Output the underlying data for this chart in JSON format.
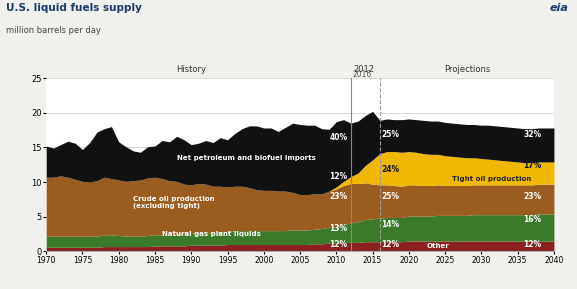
{
  "title": "U.S. liquid fuels supply",
  "subtitle": "million barrels per day",
  "ylim": [
    0,
    25
  ],
  "xlim": [
    1970,
    2040
  ],
  "yticks": [
    0,
    5,
    10,
    15,
    20,
    25
  ],
  "xticks": [
    1970,
    1975,
    1980,
    1985,
    1990,
    1995,
    2000,
    2005,
    2010,
    2015,
    2020,
    2025,
    2030,
    2035,
    2040
  ],
  "history_line_x": 2012,
  "projection_line_x": 2016,
  "colors": {
    "other": "#8B2020",
    "ngpl": "#3a7a28",
    "crude": "#9B5C20",
    "tight": "#F0B800",
    "imports": "#111111"
  },
  "history_years": [
    1970,
    1971,
    1972,
    1973,
    1974,
    1975,
    1976,
    1977,
    1978,
    1979,
    1980,
    1981,
    1982,
    1983,
    1984,
    1985,
    1986,
    1987,
    1988,
    1989,
    1990,
    1991,
    1992,
    1993,
    1994,
    1995,
    1996,
    1997,
    1998,
    1999,
    2000,
    2001,
    2002,
    2003,
    2004,
    2005,
    2006,
    2007,
    2008,
    2009,
    2010,
    2011,
    2012
  ],
  "other_h": [
    0.6,
    0.6,
    0.6,
    0.6,
    0.6,
    0.6,
    0.6,
    0.6,
    0.7,
    0.7,
    0.7,
    0.7,
    0.7,
    0.7,
    0.7,
    0.8,
    0.8,
    0.8,
    0.8,
    0.8,
    0.9,
    0.9,
    0.9,
    0.9,
    0.9,
    1.0,
    1.0,
    1.0,
    1.0,
    1.0,
    1.0,
    1.0,
    1.0,
    1.0,
    1.0,
    1.0,
    1.0,
    1.1,
    1.1,
    1.2,
    1.2,
    1.3,
    1.3
  ],
  "ngpl_h": [
    1.6,
    1.6,
    1.6,
    1.6,
    1.6,
    1.6,
    1.6,
    1.6,
    1.7,
    1.7,
    1.6,
    1.5,
    1.5,
    1.5,
    1.6,
    1.6,
    1.6,
    1.6,
    1.7,
    1.7,
    1.7,
    1.8,
    1.8,
    1.8,
    1.9,
    1.9,
    2.0,
    2.0,
    2.0,
    2.0,
    2.0,
    2.0,
    2.0,
    2.0,
    2.1,
    2.1,
    2.1,
    2.1,
    2.2,
    2.3,
    2.4,
    2.6,
    2.8
  ],
  "crude_h": [
    8.5,
    8.5,
    8.7,
    8.5,
    8.2,
    7.9,
    7.8,
    8.0,
    8.3,
    8.1,
    8.0,
    7.9,
    8.0,
    8.1,
    8.3,
    8.3,
    8.1,
    7.8,
    7.6,
    7.2,
    7.0,
    7.1,
    7.0,
    6.7,
    6.6,
    6.4,
    6.4,
    6.4,
    6.2,
    5.9,
    5.8,
    5.8,
    5.7,
    5.7,
    5.4,
    5.1,
    5.1,
    5.1,
    5.0,
    5.2,
    5.4,
    5.6,
    5.7
  ],
  "tight_h": [
    0.0,
    0.0,
    0.0,
    0.0,
    0.0,
    0.0,
    0.0,
    0.0,
    0.0,
    0.0,
    0.0,
    0.0,
    0.0,
    0.0,
    0.0,
    0.0,
    0.0,
    0.0,
    0.0,
    0.0,
    0.0,
    0.0,
    0.0,
    0.0,
    0.0,
    0.0,
    0.0,
    0.0,
    0.0,
    0.0,
    0.0,
    0.0,
    0.0,
    0.0,
    0.0,
    0.0,
    0.0,
    0.0,
    0.0,
    0.0,
    0.3,
    0.6,
    1.0
  ],
  "imports_h": [
    4.5,
    4.2,
    4.5,
    5.2,
    5.2,
    4.6,
    5.7,
    7.0,
    7.0,
    7.5,
    5.5,
    5.0,
    4.3,
    4.0,
    4.5,
    4.5,
    5.5,
    5.6,
    6.5,
    6.4,
    5.8,
    5.8,
    6.3,
    6.3,
    7.0,
    6.8,
    7.6,
    8.3,
    8.9,
    9.2,
    9.0,
    9.0,
    8.6,
    9.2,
    10.0,
    10.1,
    10.0,
    9.9,
    9.4,
    8.9,
    9.4,
    8.9,
    7.7
  ],
  "proj_years": [
    2012,
    2013,
    2014,
    2015,
    2016,
    2017,
    2018,
    2019,
    2020,
    2021,
    2022,
    2023,
    2024,
    2025,
    2026,
    2027,
    2028,
    2029,
    2030,
    2031,
    2032,
    2033,
    2034,
    2035,
    2036,
    2037,
    2038,
    2039,
    2040
  ],
  "other_p": [
    1.3,
    1.3,
    1.4,
    1.4,
    1.4,
    1.4,
    1.4,
    1.4,
    1.5,
    1.5,
    1.5,
    1.5,
    1.5,
    1.5,
    1.5,
    1.5,
    1.5,
    1.5,
    1.5,
    1.5,
    1.5,
    1.5,
    1.5,
    1.5,
    1.5,
    1.5,
    1.5,
    1.5,
    1.5
  ],
  "ngpl_p": [
    2.8,
    3.0,
    3.2,
    3.3,
    3.4,
    3.5,
    3.5,
    3.5,
    3.6,
    3.6,
    3.6,
    3.6,
    3.7,
    3.7,
    3.7,
    3.7,
    3.7,
    3.8,
    3.8,
    3.8,
    3.8,
    3.8,
    3.8,
    3.8,
    3.8,
    3.8,
    3.9,
    3.9,
    3.9
  ],
  "crude_p": [
    5.7,
    5.5,
    5.3,
    5.0,
    4.8,
    4.7,
    4.6,
    4.5,
    4.5,
    4.5,
    4.4,
    4.4,
    4.4,
    4.3,
    4.3,
    4.3,
    4.3,
    4.3,
    4.3,
    4.3,
    4.3,
    4.3,
    4.3,
    4.3,
    4.3,
    4.3,
    4.3,
    4.3,
    4.3
  ],
  "tight_p": [
    1.0,
    1.5,
    2.5,
    3.5,
    4.5,
    4.8,
    4.9,
    4.9,
    4.8,
    4.7,
    4.6,
    4.5,
    4.4,
    4.3,
    4.2,
    4.1,
    4.0,
    3.9,
    3.8,
    3.7,
    3.6,
    3.5,
    3.4,
    3.3,
    3.2,
    3.2,
    3.2,
    3.2,
    3.2
  ],
  "imports_p": [
    7.7,
    7.5,
    7.2,
    7.0,
    4.8,
    4.7,
    4.6,
    4.7,
    4.7,
    4.7,
    4.8,
    4.8,
    4.8,
    4.8,
    4.8,
    4.8,
    4.8,
    4.8,
    4.8,
    4.9,
    4.9,
    4.9,
    4.9,
    4.9,
    4.9,
    4.9,
    4.9,
    4.9,
    4.9
  ],
  "labels": {
    "crude": "Crude oil production\n(excluding tight)",
    "tight": "Tight oil production"
  },
  "pct_2016": {
    "imports": "25%",
    "tight": "24%",
    "crude": "25%"
  },
  "pct_2040": {
    "tight": "17%"
  },
  "bg_color": "#f0f0ec",
  "plot_bg": "#ffffff",
  "grid_color": "#cccccc"
}
